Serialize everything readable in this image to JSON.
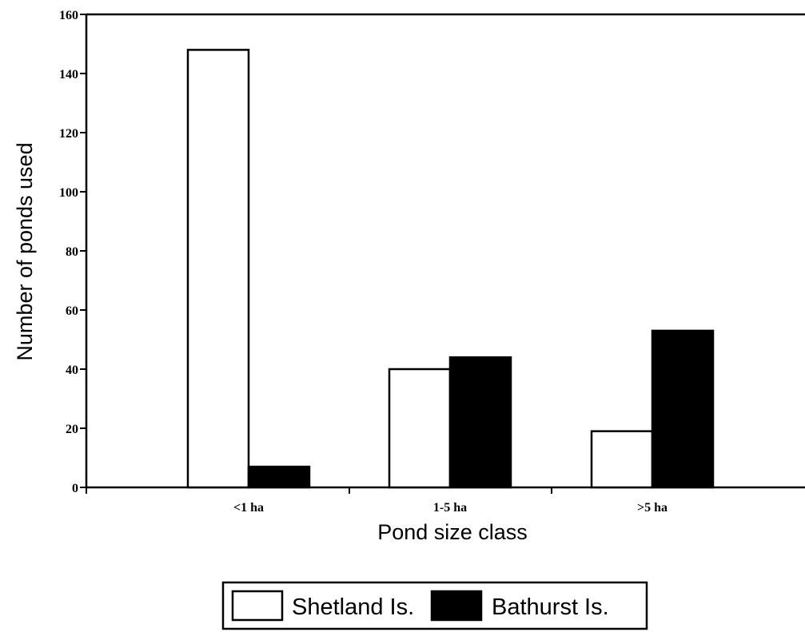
{
  "chart_data": {
    "type": "bar",
    "categories": [
      "<1 ha",
      "1-5 ha",
      ">5 ha"
    ],
    "series": [
      {
        "name": "Shetland Is.",
        "values": [
          148,
          40,
          19
        ],
        "color": "#ffffff"
      },
      {
        "name": "Bathurst Is.",
        "values": [
          7,
          44,
          53
        ],
        "color": "#000000"
      }
    ],
    "xlabel": "Pond size class",
    "ylabel": "Number of ponds used",
    "ylim": [
      0,
      160
    ],
    "yticks": [
      0,
      20,
      40,
      60,
      80,
      100,
      120,
      140,
      160
    ],
    "grid": false,
    "legend_position": "bottom-center"
  }
}
